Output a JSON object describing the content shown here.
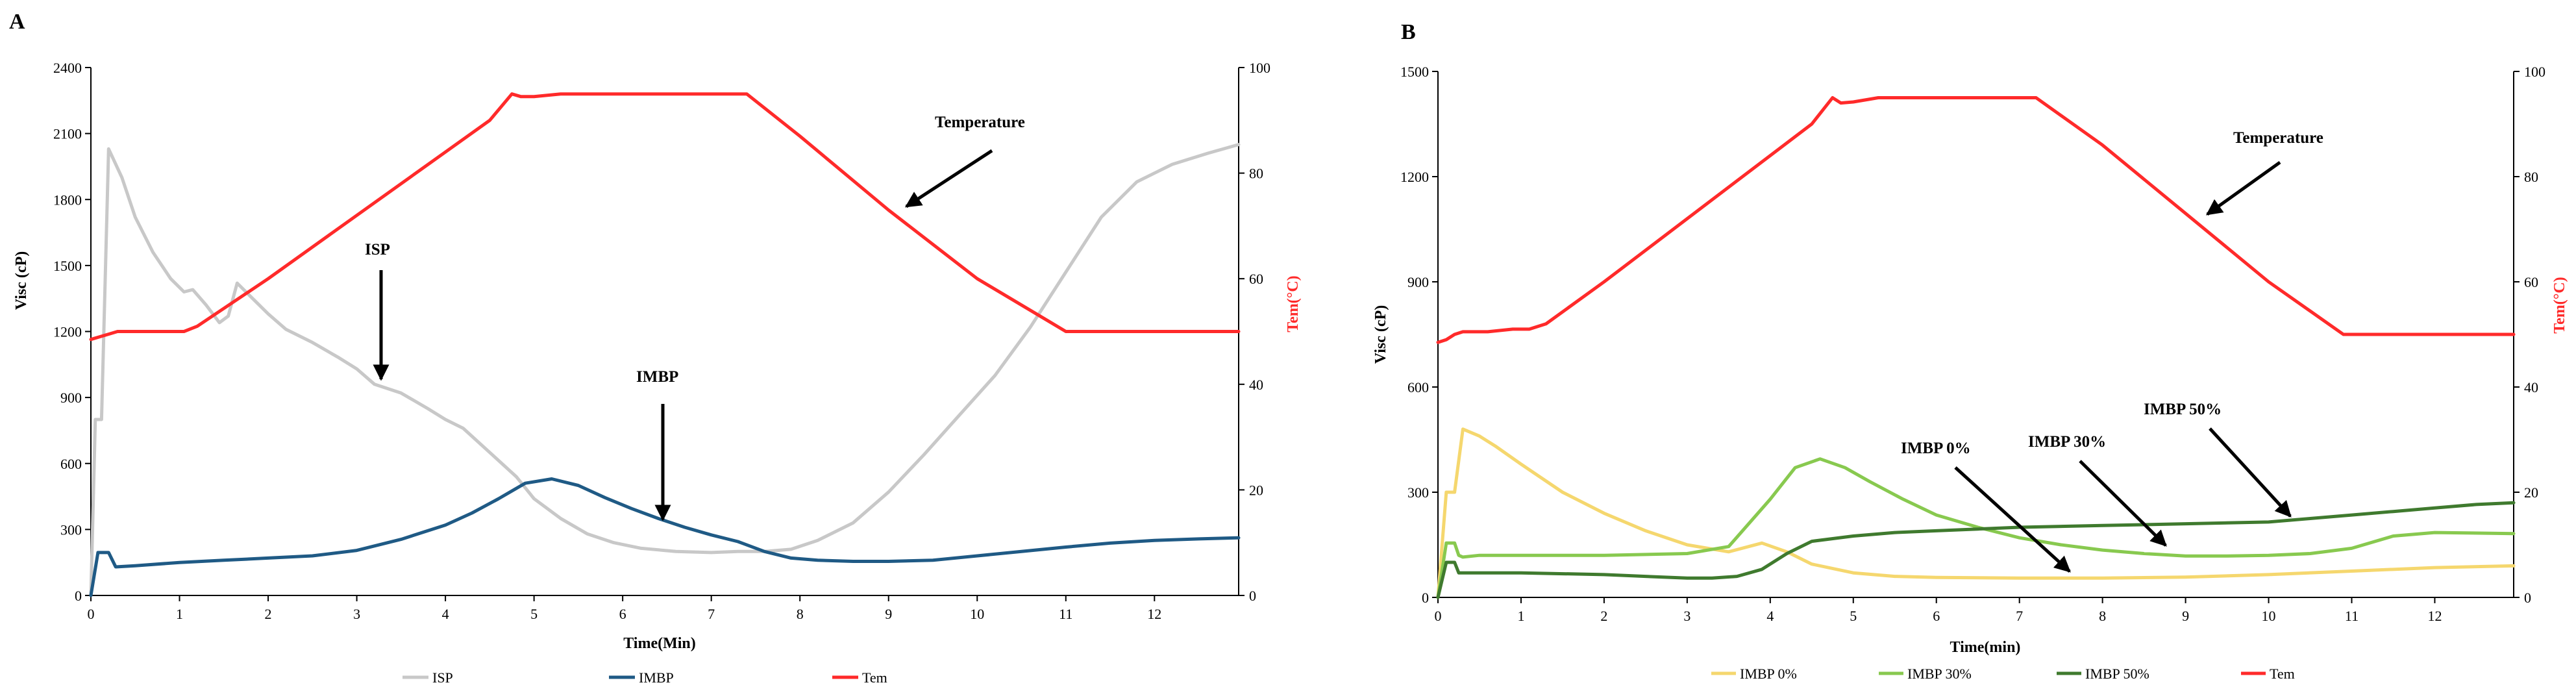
{
  "chart_data": [
    {
      "panel_label": "A",
      "type": "line",
      "xlabel": "Time(Min)",
      "ylabel": "Visc (cP)",
      "y2label": "Tem(°C)",
      "xlim": [
        0,
        12.95
      ],
      "ylim": [
        0,
        2400
      ],
      "y2lim": [
        0,
        100
      ],
      "x_ticks": [
        0,
        1,
        2,
        3,
        4,
        5,
        6,
        7,
        8,
        9,
        10,
        11,
        12
      ],
      "y_ticks": [
        0,
        300,
        600,
        900,
        1200,
        1500,
        1800,
        2100,
        2400
      ],
      "y2_ticks": [
        0,
        20,
        40,
        60,
        80,
        100
      ],
      "legend": [
        "ISP",
        "IMBP",
        "Tem"
      ],
      "series": [
        {
          "name": "ISP",
          "color": "#c8c8c8",
          "axis": "left",
          "x": [
            0,
            0.05,
            0.12,
            0.2,
            0.35,
            0.5,
            0.7,
            0.9,
            1.05,
            1.15,
            1.3,
            1.45,
            1.55,
            1.65,
            1.8,
            2.0,
            2.2,
            2.5,
            2.8,
            3.0,
            3.2,
            3.5,
            3.8,
            4.0,
            4.2,
            4.5,
            4.8,
            5.0,
            5.3,
            5.6,
            5.9,
            6.2,
            6.6,
            7.0,
            7.3,
            7.6,
            7.9,
            8.2,
            8.6,
            9.0,
            9.4,
            9.8,
            10.2,
            10.6,
            11.0,
            11.4,
            11.8,
            12.2,
            12.6,
            12.95
          ],
          "values": [
            0,
            800,
            800,
            2030,
            1900,
            1720,
            1560,
            1440,
            1380,
            1390,
            1320,
            1240,
            1270,
            1420,
            1360,
            1280,
            1210,
            1150,
            1080,
            1030,
            960,
            920,
            850,
            800,
            760,
            650,
            540,
            440,
            350,
            280,
            240,
            215,
            200,
            195,
            200,
            200,
            210,
            250,
            330,
            470,
            640,
            820,
            1000,
            1220,
            1470,
            1720,
            1880,
            1960,
            2010,
            2050
          ]
        },
        {
          "name": "IMBP",
          "color": "#1f5a85",
          "axis": "left",
          "x": [
            0,
            0.08,
            0.15,
            0.2,
            0.28,
            0.5,
            1.0,
            1.5,
            2.0,
            2.5,
            3.0,
            3.5,
            4.0,
            4.3,
            4.6,
            4.9,
            5.2,
            5.5,
            5.8,
            6.1,
            6.4,
            6.7,
            7.0,
            7.3,
            7.6,
            7.9,
            8.2,
            8.6,
            9.0,
            9.5,
            10.0,
            10.5,
            11.0,
            11.5,
            12.0,
            12.5,
            12.95
          ],
          "values": [
            0,
            195,
            195,
            195,
            130,
            135,
            150,
            160,
            170,
            180,
            205,
            255,
            320,
            375,
            440,
            510,
            530,
            500,
            445,
            395,
            350,
            310,
            275,
            245,
            200,
            170,
            160,
            155,
            155,
            160,
            180,
            200,
            220,
            238,
            250,
            257,
            262
          ]
        },
        {
          "name": "Tem",
          "color": "#ff2a2a",
          "axis": "right",
          "x": [
            0,
            0.1,
            0.2,
            0.3,
            0.5,
            1.05,
            1.2,
            2.0,
            3.0,
            4.0,
            4.5,
            4.75,
            4.85,
            5.0,
            5.3,
            6.0,
            7.0,
            7.4,
            8.0,
            9.0,
            10.0,
            10.8,
            11.0,
            11.5,
            12.0,
            12.95
          ],
          "values": [
            48.5,
            49,
            49.5,
            50,
            50,
            50,
            51,
            60,
            72,
            84,
            90,
            95,
            94.5,
            94.5,
            95,
            95,
            95,
            95,
            87,
            73,
            60,
            52,
            50,
            50,
            50,
            50
          ]
        }
      ],
      "annotations": [
        {
          "text": "Temperature"
        },
        {
          "text": "ISP"
        },
        {
          "text": "IMBP"
        }
      ]
    },
    {
      "panel_label": "B",
      "type": "line",
      "xlabel": "Time(min)",
      "ylabel": "Visc (cP)",
      "y2label": "Tem(°C)",
      "xlim": [
        0,
        12.95
      ],
      "ylim": [
        0,
        1500
      ],
      "y2lim": [
        0,
        100
      ],
      "x_ticks": [
        0,
        1,
        2,
        3,
        4,
        5,
        6,
        7,
        8,
        9,
        10,
        11,
        12
      ],
      "y_ticks": [
        0,
        300,
        600,
        900,
        1200,
        1500
      ],
      "y2_ticks": [
        0,
        20,
        40,
        60,
        80,
        100
      ],
      "legend": [
        "IMBP 0%",
        "IMBP 30%",
        "IMBP 50%",
        "Tem"
      ],
      "series": [
        {
          "name": "IMBP 0%",
          "color": "#f5d76e",
          "axis": "left",
          "x": [
            0,
            0.1,
            0.2,
            0.3,
            0.5,
            0.7,
            1.0,
            1.5,
            2.0,
            2.5,
            3.0,
            3.5,
            3.9,
            4.2,
            4.5,
            5.0,
            5.5,
            6.0,
            7.0,
            8.0,
            9.0,
            10.0,
            11.0,
            12.0,
            12.95
          ],
          "values": [
            0,
            300,
            300,
            480,
            460,
            430,
            380,
            300,
            240,
            190,
            150,
            130,
            155,
            130,
            95,
            70,
            60,
            57,
            55,
            55,
            58,
            65,
            75,
            85,
            90
          ]
        },
        {
          "name": "IMBP 30%",
          "color": "#88c94f",
          "axis": "left",
          "x": [
            0,
            0.1,
            0.2,
            0.25,
            0.3,
            0.5,
            1.0,
            2.0,
            3.0,
            3.5,
            4.0,
            4.3,
            4.6,
            4.9,
            5.2,
            5.6,
            6.0,
            6.5,
            7.0,
            7.5,
            8.0,
            8.5,
            9.0,
            9.5,
            10.0,
            10.5,
            11.0,
            11.5,
            12.0,
            12.95
          ],
          "values": [
            0,
            155,
            155,
            120,
            115,
            120,
            120,
            120,
            125,
            145,
            280,
            370,
            395,
            370,
            330,
            280,
            235,
            200,
            170,
            150,
            135,
            125,
            118,
            118,
            120,
            125,
            140,
            175,
            185,
            182
          ]
        },
        {
          "name": "IMBP 50%",
          "color": "#3f7a2e",
          "axis": "left",
          "x": [
            0,
            0.1,
            0.2,
            0.25,
            0.3,
            0.5,
            1.0,
            2.0,
            2.5,
            3.0,
            3.3,
            3.6,
            3.9,
            4.2,
            4.5,
            5.0,
            5.5,
            6.0,
            6.5,
            7.0,
            8.0,
            9.0,
            10.0,
            10.5,
            11.0,
            11.5,
            12.0,
            12.5,
            12.95
          ],
          "values": [
            0,
            100,
            100,
            70,
            70,
            70,
            70,
            65,
            60,
            55,
            55,
            60,
            80,
            125,
            160,
            175,
            185,
            190,
            195,
            200,
            205,
            210,
            215,
            225,
            235,
            245,
            255,
            265,
            270
          ]
        },
        {
          "name": "Tem",
          "color": "#ff2a2a",
          "axis": "right",
          "x": [
            0,
            0.1,
            0.2,
            0.3,
            0.6,
            0.9,
            1.1,
            1.3,
            2.0,
            3.0,
            4.0,
            4.5,
            4.75,
            4.85,
            5.0,
            5.3,
            6.0,
            7.0,
            7.2,
            8.0,
            9.0,
            10.0,
            10.9,
            11.0,
            11.5,
            12.0,
            12.95
          ],
          "values": [
            48.5,
            49,
            50,
            50.5,
            50.5,
            51,
            51,
            52,
            60,
            72,
            84,
            90,
            95,
            94,
            94.2,
            95,
            95,
            95,
            95,
            86,
            73,
            60,
            50,
            50,
            50,
            50,
            50
          ]
        }
      ],
      "annotations": [
        {
          "text": "Temperature"
        },
        {
          "text": "IMBP 0%"
        },
        {
          "text": "IMBP 30%"
        },
        {
          "text": "IMBP 50%"
        }
      ]
    }
  ]
}
